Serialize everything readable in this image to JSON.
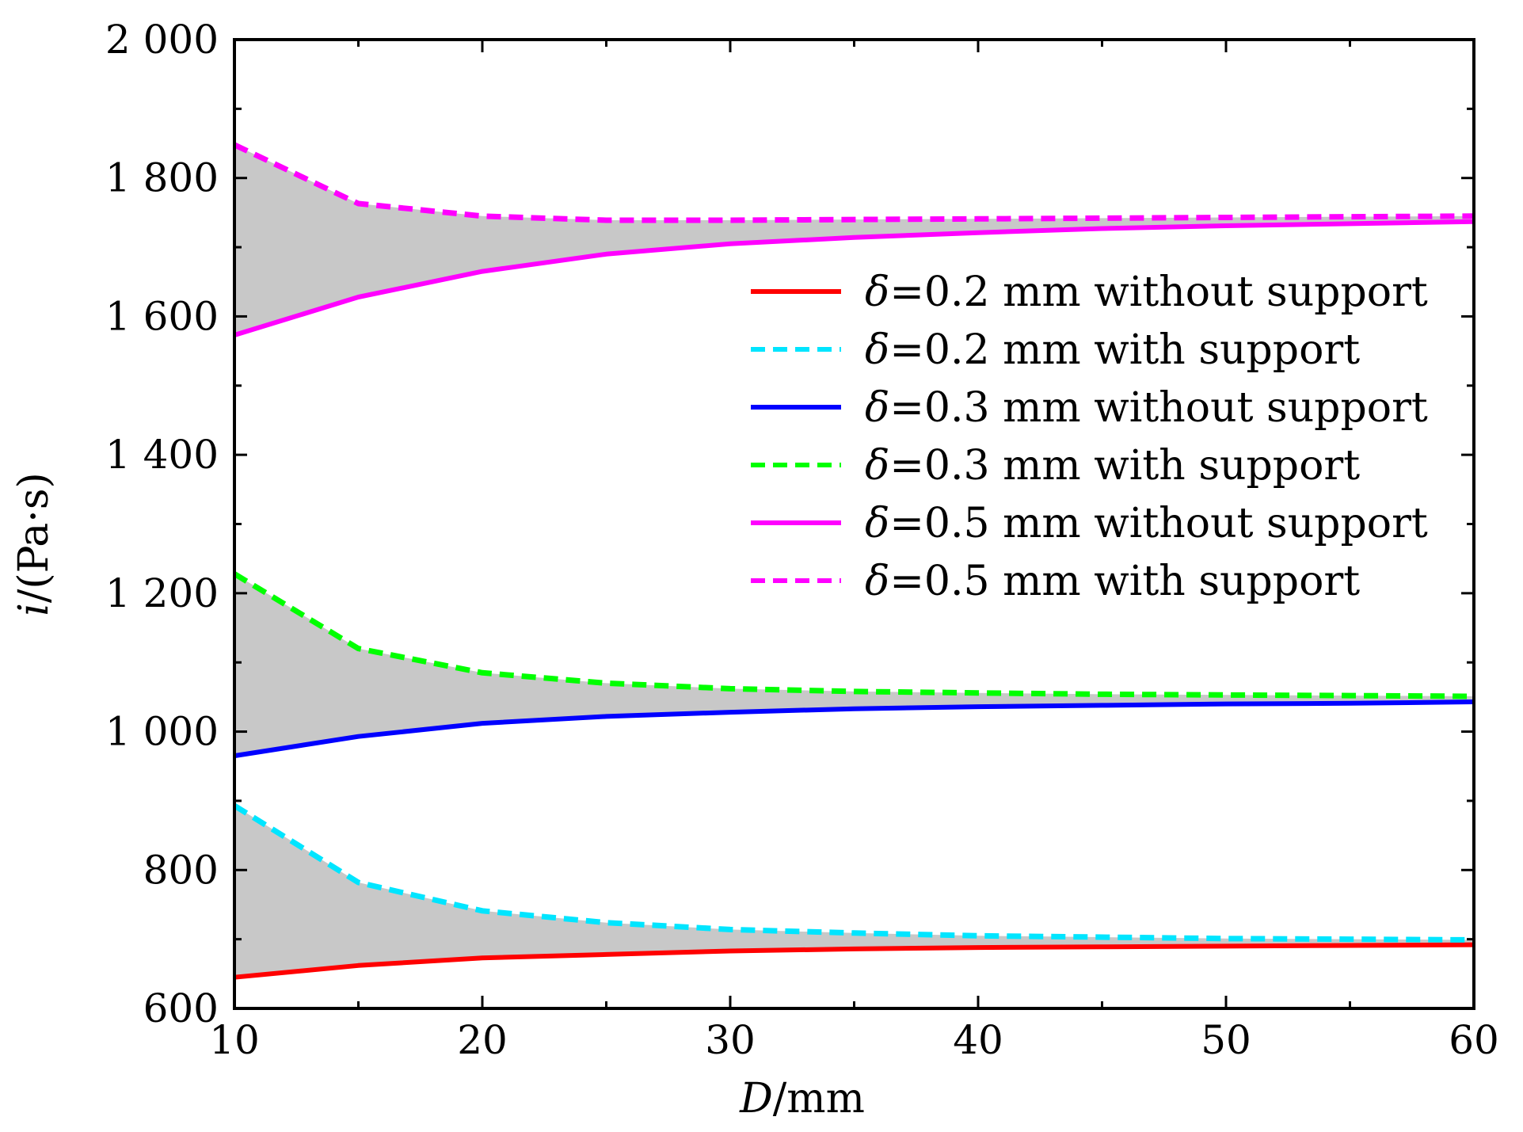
{
  "chart_data": {
    "type": "line",
    "xlabel": {
      "var": "D",
      "unit": "/mm"
    },
    "ylabel": {
      "var": "i",
      "unit": "/(Pa·s)"
    },
    "xlim": [
      10,
      60
    ],
    "ylim": [
      600,
      2000
    ],
    "xticks": [
      10,
      20,
      30,
      40,
      50,
      60
    ],
    "xtick_labels": [
      "10",
      "20",
      "30",
      "40",
      "50",
      "60"
    ],
    "yticks": [
      600,
      800,
      1000,
      1200,
      1400,
      1600,
      1800,
      2000
    ],
    "ytick_labels": [
      "600",
      "800",
      "1 000",
      "1 200",
      "1 400",
      "1 600",
      "1 800",
      "2 000"
    ],
    "grid": false,
    "legend_position": "right",
    "shaded_band_color": "#c8c8c8",
    "series": [
      {
        "name": "δ=0.2 mm without support",
        "symbol": "δ",
        "label": "=0.2 mm  without support",
        "color": "#ff0000",
        "dash": "solid",
        "group": 0,
        "role": "lower",
        "x": [
          10,
          15,
          20,
          25,
          30,
          35,
          40,
          45,
          50,
          55,
          60
        ],
        "y": [
          645,
          662,
          673,
          678,
          683,
          686,
          688,
          689,
          690,
          691,
          692
        ]
      },
      {
        "name": "δ=0.2 mm with support",
        "symbol": "δ",
        "label": "=0.2 mm  with support",
        "color": "#00e5ff",
        "dash": "dashed",
        "group": 0,
        "role": "upper",
        "x": [
          10,
          15,
          20,
          25,
          30,
          35,
          40,
          45,
          50,
          55,
          60
        ],
        "y": [
          893,
          782,
          741,
          724,
          714,
          709,
          705,
          703,
          701,
          700,
          699
        ]
      },
      {
        "name": "δ=0.3 mm without support",
        "symbol": "δ",
        "label": "=0.3 mm  without support",
        "color": "#0000ff",
        "dash": "solid",
        "group": 1,
        "role": "lower",
        "x": [
          10,
          15,
          20,
          25,
          30,
          35,
          40,
          45,
          50,
          55,
          60
        ],
        "y": [
          965,
          993,
          1012,
          1022,
          1028,
          1033,
          1036,
          1038,
          1040,
          1041,
          1043
        ]
      },
      {
        "name": "δ=0.3 mm with support",
        "symbol": "δ",
        "label": "=0.3 mm  with support",
        "color": "#00ff00",
        "dash": "dashed",
        "group": 1,
        "role": "upper",
        "x": [
          10,
          15,
          20,
          25,
          30,
          35,
          40,
          45,
          50,
          55,
          60
        ],
        "y": [
          1228,
          1120,
          1085,
          1070,
          1062,
          1058,
          1056,
          1054,
          1053,
          1052,
          1051
        ]
      },
      {
        "name": "δ=0.5 mm without support",
        "symbol": "δ",
        "label": "=0.5 mm  without support",
        "color": "#ff00ff",
        "dash": "solid",
        "group": 2,
        "role": "lower",
        "x": [
          10,
          15,
          20,
          25,
          30,
          35,
          40,
          45,
          50,
          55,
          60
        ],
        "y": [
          1573,
          1628,
          1665,
          1690,
          1705,
          1714,
          1721,
          1727,
          1731,
          1734,
          1737
        ]
      },
      {
        "name": "δ=0.5 mm with support",
        "symbol": "δ",
        "label": "=0.5 mm  with support",
        "color": "#ff00ff",
        "dash": "dashed",
        "group": 2,
        "role": "upper",
        "x": [
          10,
          15,
          20,
          25,
          30,
          35,
          40,
          45,
          50,
          55,
          60
        ],
        "y": [
          1848,
          1763,
          1745,
          1739,
          1739,
          1740,
          1741,
          1742,
          1743,
          1744,
          1745
        ]
      }
    ]
  }
}
